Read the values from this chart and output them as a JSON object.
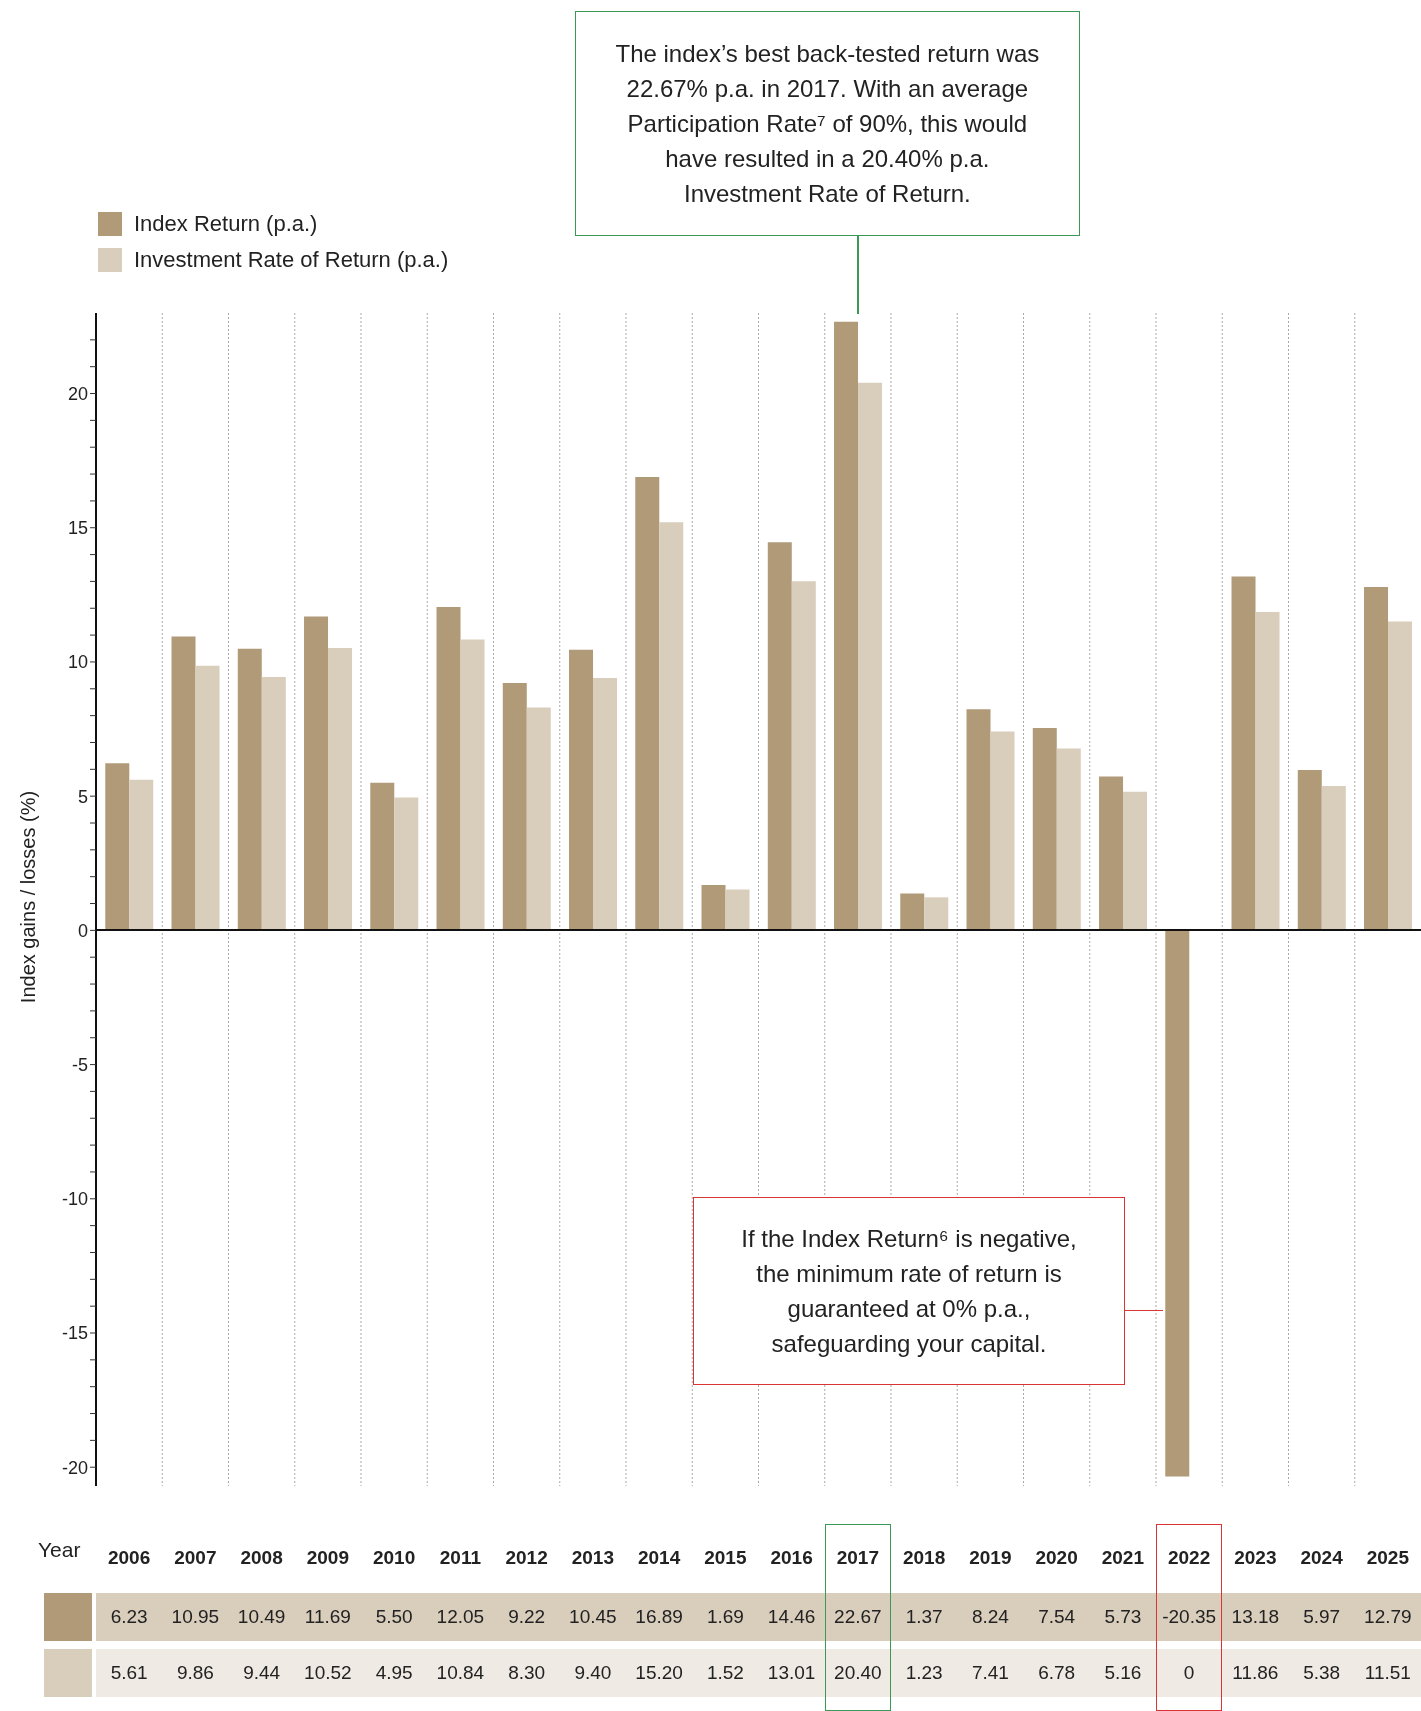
{
  "chart_data": {
    "type": "bar",
    "ylabel": "Index gains / losses (%)",
    "xlabel": "Year",
    "categories": [
      "2006",
      "2007",
      "2008",
      "2009",
      "2010",
      "2011",
      "2012",
      "2013",
      "2014",
      "2015",
      "2016",
      "2017",
      "2018",
      "2019",
      "2020",
      "2021",
      "2022",
      "2023",
      "2024",
      "2025"
    ],
    "series": [
      {
        "name": "Index Return (p.a.)",
        "color": "#b09a78",
        "values": [
          6.23,
          10.95,
          10.49,
          11.69,
          5.5,
          12.05,
          9.22,
          10.45,
          16.89,
          1.69,
          14.46,
          22.67,
          1.37,
          8.24,
          7.54,
          5.73,
          -20.35,
          13.18,
          5.97,
          12.79
        ],
        "value_labels": [
          "6.23",
          "10.95",
          "10.49",
          "11.69",
          "5.50",
          "12.05",
          "9.22",
          "10.45",
          "16.89",
          "1.69",
          "14.46",
          "22.67",
          "1.37",
          "8.24",
          "7.54",
          "5.73",
          "-20.35",
          "13.18",
          "5.97",
          "12.79"
        ]
      },
      {
        "name": "Investment Rate of Return (p.a.)",
        "color": "#d9cdbc",
        "values": [
          5.61,
          9.86,
          9.44,
          10.52,
          4.95,
          10.84,
          8.3,
          9.4,
          15.2,
          1.52,
          13.01,
          20.4,
          1.23,
          7.41,
          6.78,
          5.16,
          0,
          11.86,
          5.38,
          11.51
        ],
        "value_labels": [
          "5.61",
          "9.86",
          "9.44",
          "10.52",
          "4.95",
          "10.84",
          "8.30",
          "9.40",
          "15.20",
          "1.52",
          "13.01",
          "20.40",
          "1.23",
          "7.41",
          "6.78",
          "5.16",
          "0",
          "11.86",
          "5.38",
          "11.51"
        ]
      }
    ],
    "ylim": [
      -20.7,
      23
    ],
    "yticks": [
      -20,
      {
        "value": -19,
        "label": null
      },
      {
        "value": -18,
        "label": null
      },
      {
        "value": -17,
        "label": null
      },
      {
        "value": -16,
        "label": null
      },
      -15,
      {
        "value": -14,
        "label": null
      },
      {
        "value": -13,
        "label": null
      },
      {
        "value": -12,
        "label": null
      },
      {
        "value": -11,
        "label": null
      },
      -10,
      {
        "value": -9,
        "label": null
      },
      {
        "value": -8,
        "label": null
      },
      {
        "value": -7,
        "label": null
      },
      {
        "value": -6,
        "label": null
      },
      -5,
      {
        "value": -4,
        "label": null
      },
      {
        "value": -3,
        "label": null
      },
      {
        "value": -2,
        "label": null
      },
      {
        "value": -1,
        "label": null
      },
      0,
      {
        "value": 1,
        "label": null
      },
      {
        "value": 2,
        "label": null
      },
      {
        "value": 3,
        "label": null
      },
      {
        "value": 4,
        "label": null
      },
      5,
      {
        "value": 6,
        "label": null
      },
      {
        "value": 7,
        "label": null
      },
      {
        "value": 8,
        "label": null
      },
      {
        "value": 9,
        "label": null
      },
      10,
      {
        "value": 11,
        "label": null
      },
      {
        "value": 12,
        "label": null
      },
      {
        "value": 13,
        "label": null
      },
      {
        "value": 14,
        "label": null
      },
      15,
      {
        "value": 16,
        "label": null
      },
      {
        "value": 17,
        "label": null
      },
      {
        "value": 18,
        "label": null
      },
      {
        "value": 19,
        "label": null
      },
      20,
      {
        "value": 21,
        "label": null
      },
      {
        "value": 22,
        "label": null
      }
    ],
    "grid": "x",
    "legend": "top left",
    "annotations": [
      "The index’s best back-tested return was 22.67% p.a. in 2017. With an average Participation Rate⁷ of 90%, this would have resulted in a 20.40% p.a. Investment Rate of Return.",
      "If the Index Return⁶ is negative, the minimum rate of return is guaranteed at 0% p.a., safeguarding your capital."
    ]
  }
}
